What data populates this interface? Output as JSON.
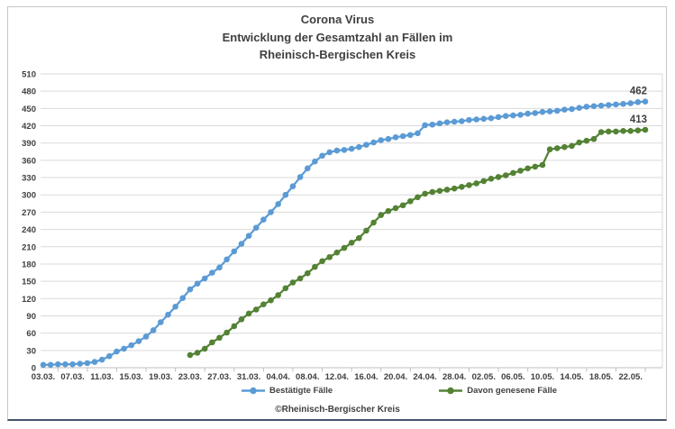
{
  "title": {
    "line1": "Corona Virus",
    "line2": "Entwicklung der Gesamtzahl an Fällen im",
    "line3": "Rheinisch-Bergischen Kreis"
  },
  "footer": {
    "text": "©Rheinisch-Bergischer Kreis"
  },
  "colors": {
    "confirmed": "#5B9BD5",
    "recovered": "#548235",
    "grid": "#D9D9D9",
    "axis": "#BFBFBF",
    "text": "#404040",
    "frame_bottom": "#44546A"
  },
  "chart_data": {
    "type": "line",
    "title": "Corona Virus – Entwicklung der Gesamtzahl an Fällen im Rheinisch-Bergischen Kreis",
    "xlabel": "",
    "ylabel": "",
    "ylim": [
      0,
      510
    ],
    "y_tick_step": 30,
    "grid": true,
    "legend_position": "bottom",
    "x_frequency": "daily",
    "x_range": [
      "03.03.",
      "24.05."
    ],
    "x_tick_labels": [
      "03.03.",
      "07.03.",
      "11.03.",
      "15.03.",
      "19.03.",
      "23.03.",
      "27.03.",
      "31.03.",
      "04.04.",
      "08.04.",
      "12.04.",
      "16.04.",
      "20.04.",
      "24.04.",
      "28.04.",
      "02.05.",
      "06.05.",
      "10.05.",
      "14.05.",
      "18.05.",
      "22.05."
    ],
    "series": [
      {
        "name": "Bestätigte Fälle",
        "color": "#5B9BD5",
        "start_date": "03.03.",
        "start_index": 0,
        "end_label": "462",
        "values": [
          5,
          5,
          6,
          6,
          6,
          7,
          8,
          10,
          14,
          20,
          28,
          33,
          39,
          46,
          54,
          65,
          79,
          92,
          106,
          121,
          136,
          146,
          155,
          165,
          174,
          188,
          202,
          215,
          229,
          243,
          257,
          270,
          284,
          300,
          315,
          331,
          346,
          358,
          368,
          374,
          377,
          378,
          380,
          383,
          387,
          391,
          395,
          397,
          400,
          402,
          404,
          407,
          421,
          422,
          424,
          426,
          427,
          428,
          430,
          431,
          432,
          433,
          435,
          437,
          438,
          439,
          441,
          442,
          444,
          445,
          446,
          448,
          449,
          451,
          453,
          454,
          455,
          456,
          457,
          458,
          459,
          461,
          462
        ]
      },
      {
        "name": "Davon genesene Fälle",
        "color": "#548235",
        "start_date": "23.03.",
        "start_index": 20,
        "end_label": "413",
        "values": [
          22,
          26,
          33,
          44,
          52,
          61,
          72,
          84,
          94,
          101,
          110,
          117,
          126,
          138,
          148,
          155,
          164,
          175,
          185,
          192,
          200,
          208,
          217,
          225,
          238,
          252,
          265,
          272,
          277,
          282,
          289,
          296,
          302,
          305,
          307,
          309,
          311,
          314,
          317,
          320,
          324,
          328,
          331,
          334,
          338,
          342,
          346,
          349,
          352,
          379,
          381,
          383,
          385,
          391,
          394,
          397,
          409,
          410,
          410,
          411,
          411,
          412,
          413
        ]
      }
    ]
  }
}
